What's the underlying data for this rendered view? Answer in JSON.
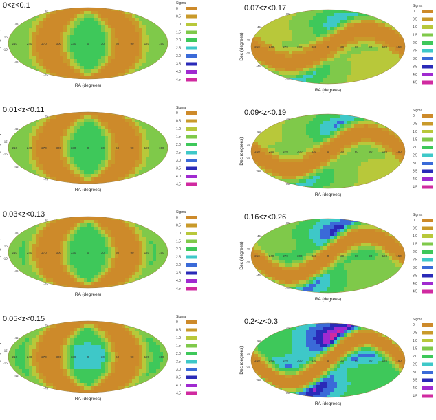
{
  "chart_data": [
    {
      "type": "heatmap",
      "title": "0<z<0.1",
      "xlabel": "RA (degrees)",
      "ylabel": "Dec (degrees)",
      "ra_ticks": [
        "210",
        "240",
        "270",
        "300",
        "330",
        "0",
        "30",
        "60",
        "90",
        "120",
        "150"
      ],
      "dec_ticks": [
        "75",
        "45",
        "15",
        "-15",
        "-45",
        "-75"
      ],
      "legend_title": "Sigma",
      "amplitude": 2.3,
      "pattern": "vertical",
      "tilt": 0
    },
    {
      "type": "heatmap",
      "title": "0.01<z<0.11",
      "xlabel": "RA (degrees)",
      "ylabel": "Dec (degrees)",
      "ra_ticks": [
        "210",
        "240",
        "270",
        "300",
        "330",
        "0",
        "30",
        "60",
        "90",
        "120",
        "150"
      ],
      "dec_ticks": [
        "75",
        "45",
        "15",
        "-15",
        "-45",
        "-75"
      ],
      "legend_title": "Sigma",
      "amplitude": 2.3,
      "pattern": "vertical",
      "tilt": 0
    },
    {
      "type": "heatmap",
      "title": "0.03<z<0.13",
      "xlabel": "RA (degrees)",
      "ylabel": "Dec (degrees)",
      "ra_ticks": [
        "210",
        "240",
        "270",
        "300",
        "330",
        "0",
        "30",
        "60",
        "90",
        "120",
        "150"
      ],
      "dec_ticks": [
        "75",
        "45",
        "15",
        "-15",
        "-45",
        "-75"
      ],
      "legend_title": "Sigma",
      "amplitude": 2.5,
      "pattern": "vertical",
      "tilt": 0
    },
    {
      "type": "heatmap",
      "title": "0.05<z<0.15",
      "xlabel": "RA (degrees)",
      "ylabel": "Dec (degrees)",
      "ra_ticks": [
        "210",
        "240",
        "270",
        "300",
        "330",
        "0",
        "30",
        "60",
        "90",
        "120",
        "150"
      ],
      "dec_ticks": [
        "75",
        "45",
        "15",
        "-15",
        "-45",
        "-75"
      ],
      "legend_title": "Sigma",
      "amplitude": 2.6,
      "pattern": "vertical",
      "tilt": 0
    },
    {
      "type": "heatmap",
      "title": "0.07<z<0.17",
      "xlabel": "RA (degrees)",
      "ylabel": "Dec (degrees)",
      "ra_ticks": [
        "210",
        "240",
        "270",
        "300",
        "330",
        "0",
        "30",
        "60",
        "90",
        "120",
        "150"
      ],
      "dec_ticks": [
        "75",
        "45",
        "15",
        "-15",
        "-45",
        "-75"
      ],
      "legend_title": "Sigma",
      "amplitude": 2.8,
      "pattern": "sinusoid",
      "tilt": 0.45
    },
    {
      "type": "heatmap",
      "title": "0.09<z<0.19",
      "xlabel": "RA (degrees)",
      "ylabel": "Dec (degrees)",
      "ra_ticks": [
        "210",
        "240",
        "270",
        "300",
        "330",
        "0",
        "30",
        "60",
        "90",
        "120",
        "150"
      ],
      "dec_ticks": [
        "75",
        "45",
        "15",
        "-15",
        "-45",
        "-75"
      ],
      "legend_title": "Sigma",
      "amplitude": 3.0,
      "pattern": "sinusoid",
      "tilt": 0.5
    },
    {
      "type": "heatmap",
      "title": "0.16<z<0.26",
      "xlabel": "RA (degrees)",
      "ylabel": "Dec (degrees)",
      "ra_ticks": [
        "210",
        "240",
        "270",
        "300",
        "330",
        "0",
        "30",
        "60",
        "90",
        "120",
        "150"
      ],
      "dec_ticks": [
        "75",
        "45",
        "15",
        "-15",
        "-45",
        "-75"
      ],
      "legend_title": "Sigma",
      "amplitude": 3.6,
      "pattern": "sinusoid",
      "tilt": 0.55
    },
    {
      "type": "heatmap",
      "title": "0.2<z<0.3",
      "xlabel": "RA (degrees)",
      "ylabel": "Dec (degrees)",
      "ra_ticks": [
        "210",
        "240",
        "270",
        "300",
        "330",
        "0",
        "30",
        "60",
        "90",
        "120",
        "150"
      ],
      "dec_ticks": [
        "75",
        "45",
        "15",
        "-15",
        "-45",
        "-75"
      ],
      "legend_title": "Sigma",
      "amplitude": 4.6,
      "pattern": "sinusoid",
      "tilt": 0.6
    }
  ],
  "legend": {
    "levels": [
      "0",
      "0.5",
      "1.0",
      "1.5",
      "2.0",
      "2.5",
      "3.0",
      "3.5",
      "4.0",
      "4.5"
    ],
    "colors": [
      "#cd8a2a",
      "#c99a2a",
      "#b8c83a",
      "#7fc94a",
      "#3ec85a",
      "#3ec8c8",
      "#3a6ad8",
      "#2a2ab8",
      "#a02ad0",
      "#d02aa0"
    ]
  }
}
